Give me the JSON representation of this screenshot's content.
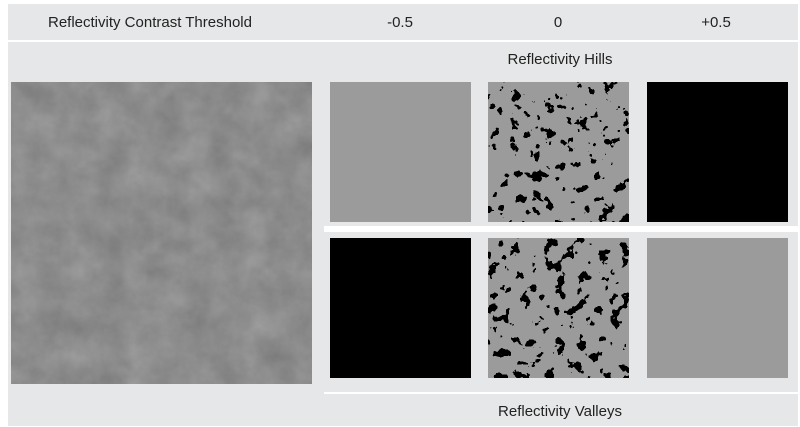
{
  "header": {
    "title": "Reflectivity Contrast Threshold",
    "thresholds": [
      "-0.5",
      "0",
      "+0.5"
    ]
  },
  "rows": {
    "hills_label": "Reflectivity Hills",
    "valleys_label": "Reflectivity Valleys"
  },
  "colors": {
    "band": "#e6e7e8",
    "texture_light": "#9a9a9a",
    "texture_dark": "#000000"
  },
  "panels": {
    "original": "original-reflectivity-texture",
    "hills": [
      "hills-threshold-neg-0.5",
      "hills-threshold-0",
      "hills-threshold-pos-0.5"
    ],
    "valleys": [
      "valleys-threshold-neg-0.5",
      "valleys-threshold-0",
      "valleys-threshold-pos-0.5"
    ]
  }
}
